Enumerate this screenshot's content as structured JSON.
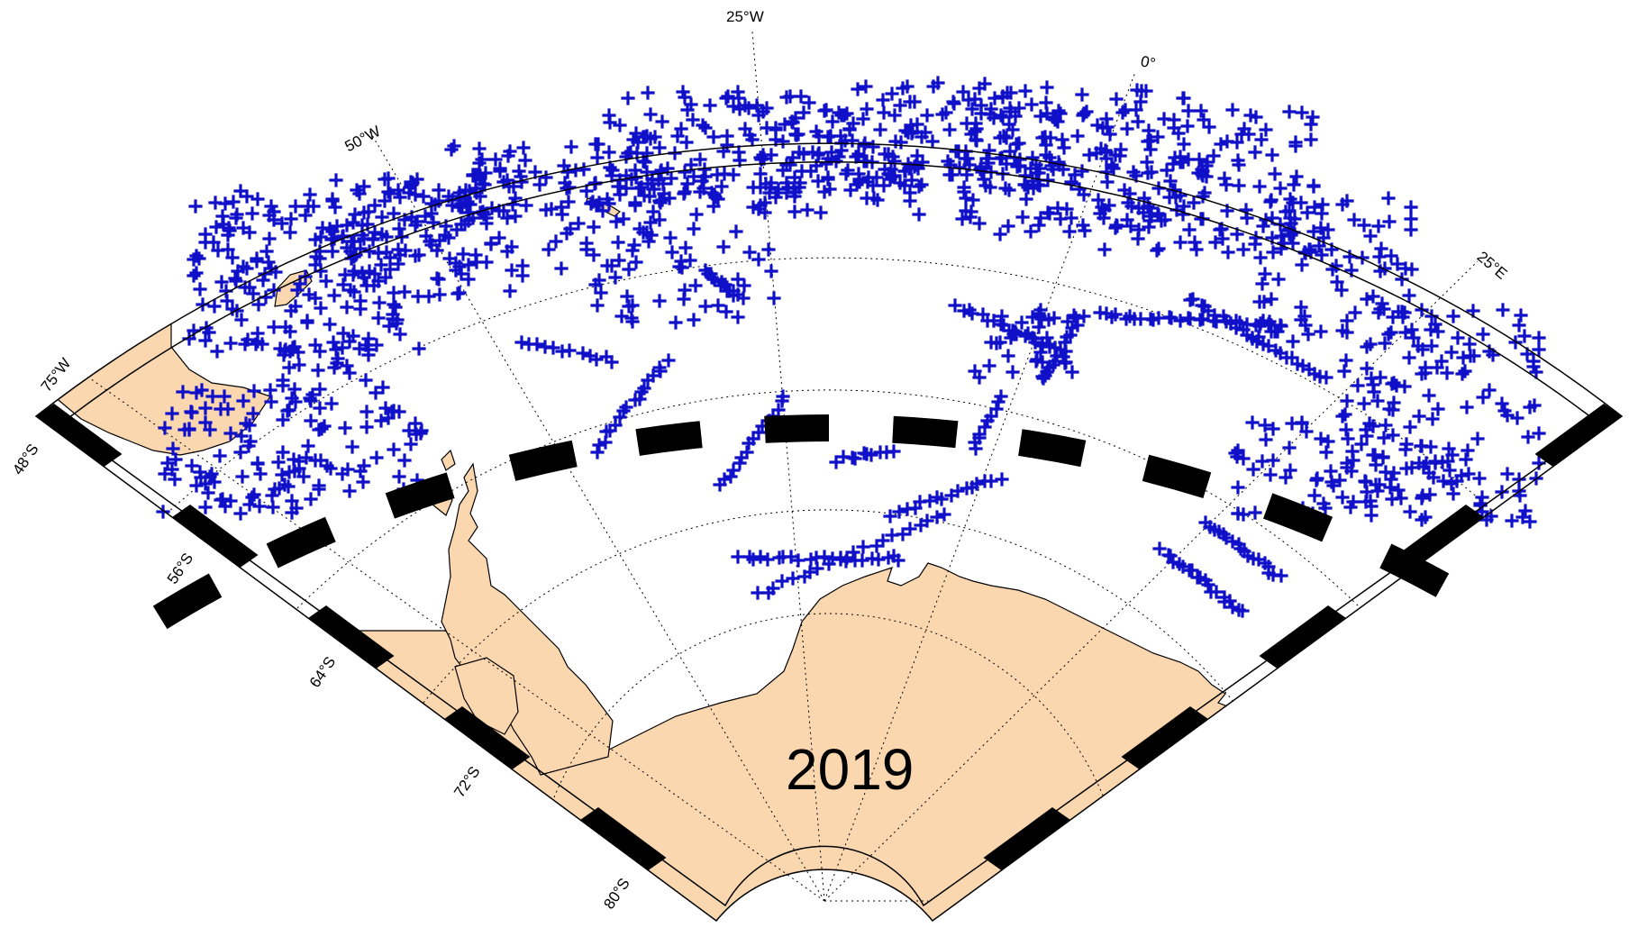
{
  "map": {
    "year": "2019",
    "colors": {
      "observations": "#1010c8",
      "land": "#fbd7b0",
      "frame": "#000000",
      "background": "#ffffff"
    },
    "marker_symbol": "+",
    "longitude_labels": [
      "75°W",
      "50°W",
      "25°W",
      "0°",
      "25°E"
    ],
    "latitude_labels": [
      "48°S",
      "56°S",
      "64°S",
      "72°S",
      "80°S"
    ]
  }
}
